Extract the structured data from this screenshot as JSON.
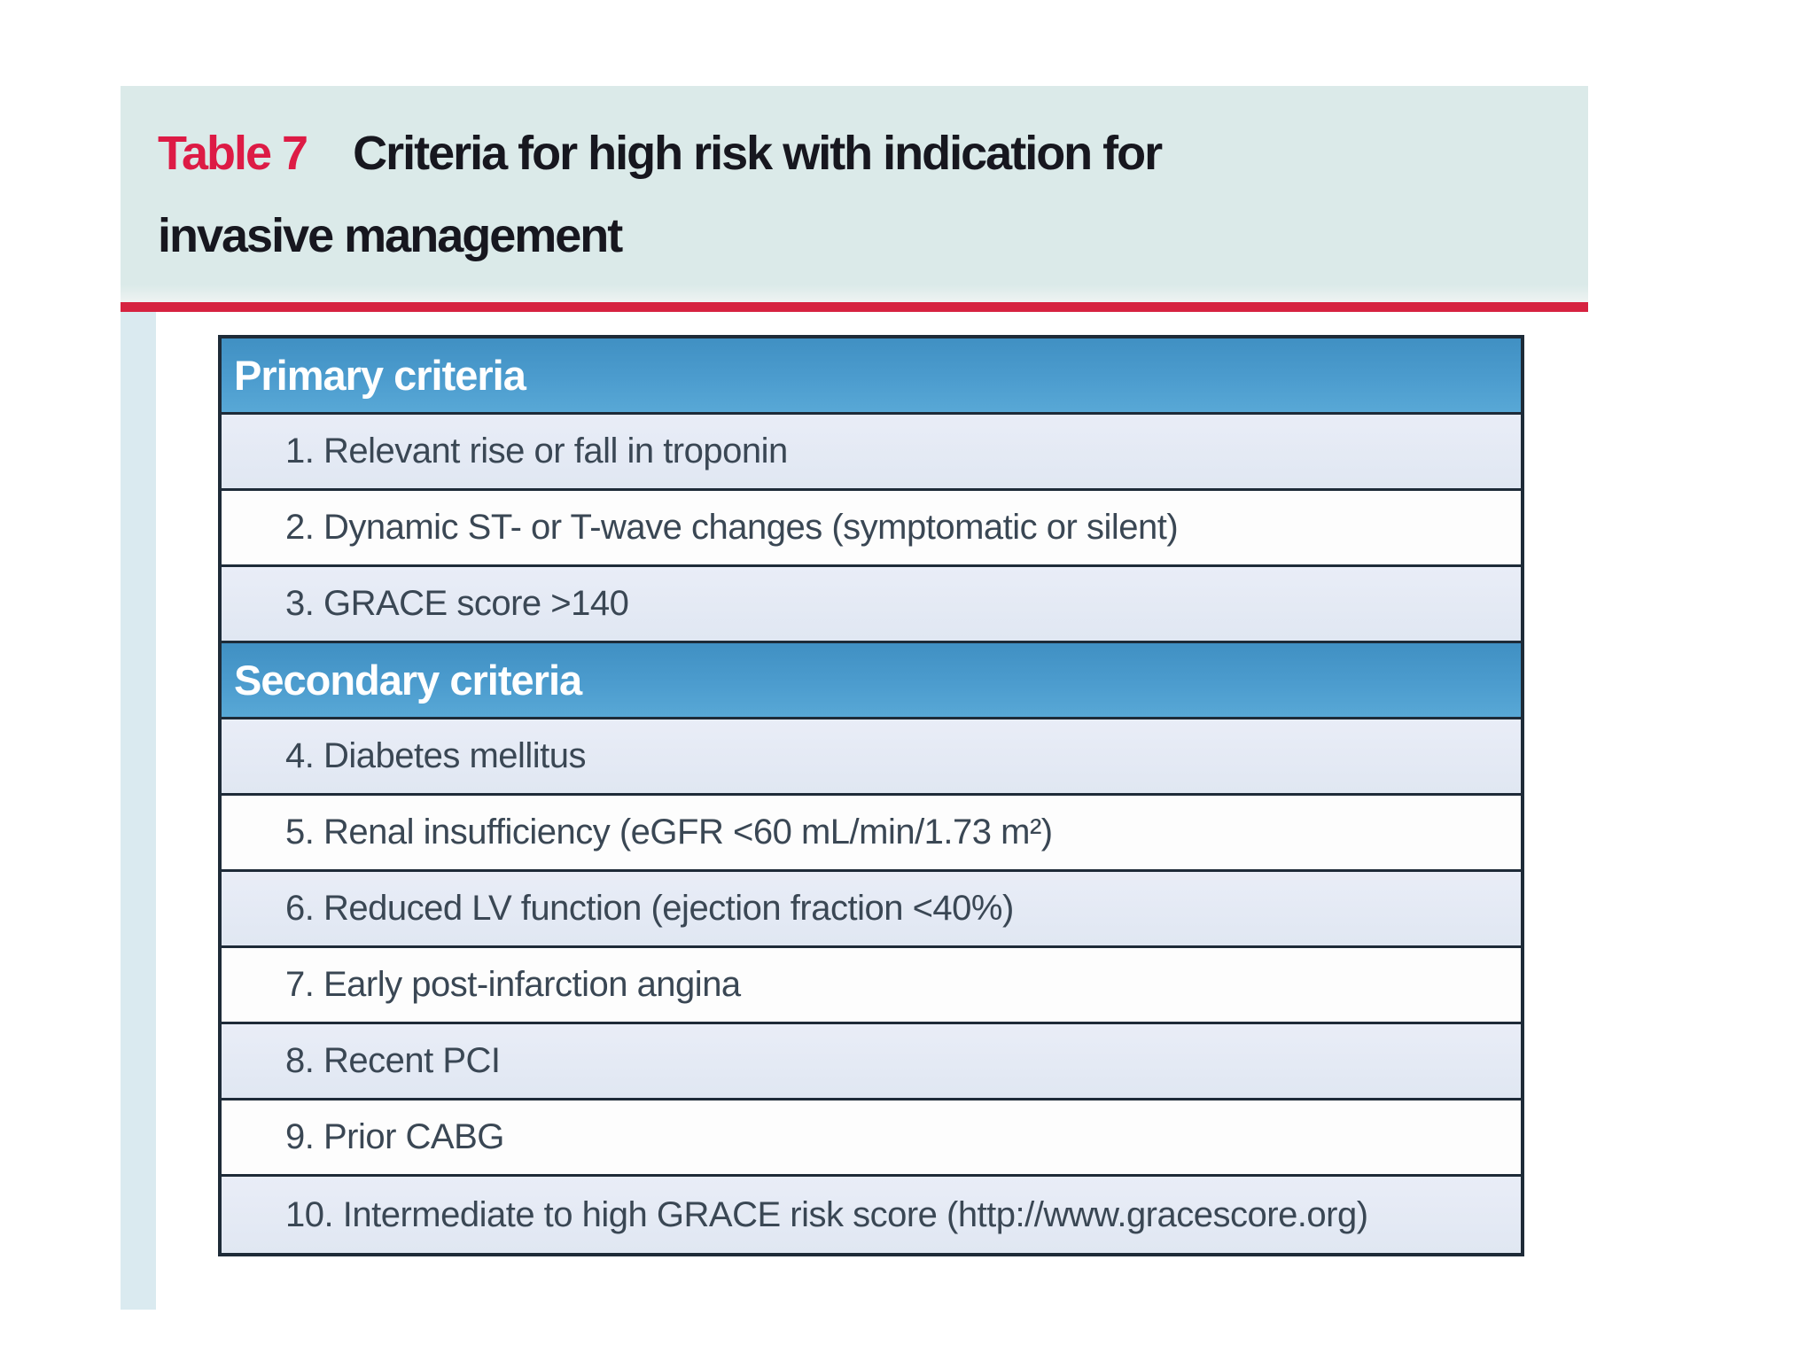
{
  "caption": {
    "label": "Table 7",
    "line1": "Criteria for high risk with indication for",
    "line2": "invasive management"
  },
  "table": {
    "rows": [
      {
        "kind": "section",
        "text": "Primary criteria"
      },
      {
        "kind": "item",
        "text": "1. Relevant rise or fall in troponin"
      },
      {
        "kind": "item",
        "text": "2. Dynamic ST- or T-wave changes (symptomatic or silent)"
      },
      {
        "kind": "item",
        "text": "3. GRACE score >140"
      },
      {
        "kind": "section",
        "text": "Secondary criteria"
      },
      {
        "kind": "item",
        "text": "4. Diabetes mellitus"
      },
      {
        "kind": "item",
        "text": "5. Renal insufficiency (eGFR <60 mL/min/1.73 m²)"
      },
      {
        "kind": "item",
        "text": "6. Reduced LV function (ejection fraction <40%)"
      },
      {
        "kind": "item",
        "text": "7. Early post-infarction angina"
      },
      {
        "kind": "item",
        "text": "8. Recent PCI"
      },
      {
        "kind": "item",
        "text": "9. Prior CABG"
      },
      {
        "kind": "item",
        "text": "10. Intermediate to high GRACE risk score (http://www.gracescore.org)"
      }
    ]
  },
  "colors": {
    "accent_red": "#d62240",
    "caption_label_red": "#dd1b45",
    "caption_background": "#dbeae9",
    "section_header_blue": "#4c9cce",
    "row_light_blue": "#e4e9f4",
    "row_white": "#fdfdfd",
    "table_border": "#1e2b38",
    "body_text": "#3a4754",
    "left_strip": "#daeaf0"
  }
}
